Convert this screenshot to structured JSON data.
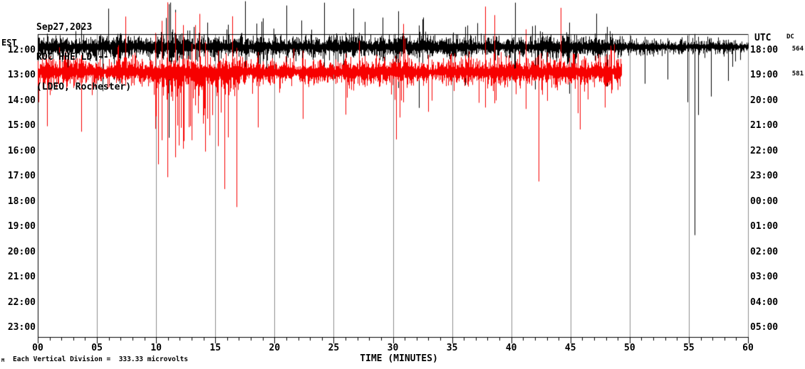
{
  "header": {
    "date": "Sep27,2023",
    "station": "ROC HHE LD --",
    "network_name": "(LDEO, Rochester)"
  },
  "left_axis": {
    "label": "EST",
    "ticks": [
      "12:00",
      "13:00",
      "14:00",
      "15:00",
      "16:00",
      "17:00",
      "18:00",
      "19:00",
      "20:00",
      "21:00",
      "22:00",
      "23:00"
    ]
  },
  "right_axis": {
    "label": "UTC",
    "ticks": [
      "18:00",
      "19:00",
      "20:00",
      "21:00",
      "22:00",
      "23:00",
      "00:00",
      "01:00",
      "02:00",
      "03:00",
      "04:00",
      "05:00"
    ]
  },
  "dc_column": {
    "label": "DC",
    "values": [
      "564",
      "581"
    ]
  },
  "x_axis": {
    "label": "TIME (MINUTES)",
    "min": 0,
    "max": 60,
    "major_step": 5,
    "minor_step": 1,
    "tick_labels": [
      "00",
      "05",
      "10",
      "15",
      "20",
      "25",
      "30",
      "35",
      "40",
      "45",
      "50",
      "55",
      "60"
    ]
  },
  "footer": {
    "scale_note": "Each Vertical Division =  333.33 microvolts",
    "mark": "M"
  },
  "colors": {
    "trace_hour1": "#000000",
    "trace_hour2": "#f70000",
    "grid": "#8c8c8c",
    "axis": "#000000",
    "background": "#ffffff"
  },
  "chart_data": {
    "type": "line",
    "subtype": "helicorder-seismogram",
    "title": "ROC HHE LD -- (LDEO, Rochester) Sep27,2023",
    "xlabel": "TIME (MINUTES)",
    "x_range": [
      0,
      60
    ],
    "grid": "vertical lines every 5 minutes",
    "vertical_division_microvolts": 333.33,
    "hours_displayed_est": [
      "12:00",
      "13:00",
      "14:00",
      "15:00",
      "16:00",
      "17:00",
      "18:00",
      "19:00",
      "20:00",
      "21:00",
      "22:00",
      "23:00"
    ],
    "rows": [
      {
        "est": "12:00",
        "utc": "18:00",
        "dc": 564,
        "color": "#000000",
        "start_min": 0,
        "end_min": 60,
        "base_amp": 11,
        "quiet_after_min": 49.5,
        "quiet_amp": 7,
        "seed": 1301,
        "spikes": [
          {
            "m": 3.2,
            "u": 22,
            "d": 38
          },
          {
            "m": 6.9,
            "u": 18,
            "d": 52
          },
          {
            "m": 11.05,
            "u": 60,
            "d": 128
          },
          {
            "m": 11.6,
            "u": 52,
            "d": 112
          },
          {
            "m": 14.3,
            "u": 34,
            "d": 62
          },
          {
            "m": 17.5,
            "u": 64,
            "d": 50
          },
          {
            "m": 19.0,
            "u": 40,
            "d": 46
          },
          {
            "m": 21.0,
            "u": 58,
            "d": 44
          },
          {
            "m": 24.2,
            "u": 62,
            "d": 38
          },
          {
            "m": 27.6,
            "u": 35,
            "d": 52
          },
          {
            "m": 30.45,
            "u": 50,
            "d": 58
          },
          {
            "m": 32.2,
            "u": 30,
            "d": 86
          },
          {
            "m": 36.1,
            "u": 28,
            "d": 54
          },
          {
            "m": 40.3,
            "u": 62,
            "d": 48
          },
          {
            "m": 42.0,
            "u": 30,
            "d": 60
          },
          {
            "m": 44.9,
            "u": 34,
            "d": 66
          },
          {
            "m": 48.1,
            "u": 28,
            "d": 56
          },
          {
            "m": 51.3,
            "u": 14,
            "d": 52
          },
          {
            "m": 53.2,
            "u": 12,
            "d": 46
          },
          {
            "m": 54.9,
            "u": 16,
            "d": 78
          },
          {
            "m": 55.5,
            "u": 18,
            "d": 265
          },
          {
            "m": 55.8,
            "u": 14,
            "d": 96
          },
          {
            "m": 56.9,
            "u": 12,
            "d": 70
          },
          {
            "m": 58.3,
            "u": 10,
            "d": 48
          }
        ]
      },
      {
        "est": "13:00",
        "utc": "19:00",
        "dc": 581,
        "color": "#f70000",
        "start_min": 0,
        "end_min": 49.3,
        "base_amp": 13,
        "burst_window": [
          9.8,
          16.8
        ],
        "seed": 7702,
        "spikes": [
          {
            "m": 3.7,
            "u": 24,
            "d": 84
          },
          {
            "m": 9.9,
            "u": 55,
            "d": 80
          },
          {
            "m": 10.5,
            "u": 72,
            "d": 96
          },
          {
            "m": 10.95,
            "u": 98,
            "d": 148
          },
          {
            "m": 11.6,
            "u": 84,
            "d": 120
          },
          {
            "m": 12.3,
            "u": 66,
            "d": 108
          },
          {
            "m": 13.0,
            "u": 40,
            "d": 96
          },
          {
            "m": 14.15,
            "u": 42,
            "d": 112
          },
          {
            "m": 15.2,
            "u": 30,
            "d": 88
          },
          {
            "m": 16.8,
            "u": 34,
            "d": 190
          },
          {
            "m": 18.6,
            "u": 28,
            "d": 78
          },
          {
            "m": 22.4,
            "u": 30,
            "d": 66
          },
          {
            "m": 26.0,
            "u": 26,
            "d": 60
          },
          {
            "m": 30.55,
            "u": 28,
            "d": 64
          },
          {
            "m": 33.0,
            "u": 24,
            "d": 56
          },
          {
            "m": 37.8,
            "u": 92,
            "d": 50
          },
          {
            "m": 38.6,
            "u": 80,
            "d": 44
          },
          {
            "m": 41.2,
            "u": 60,
            "d": 52
          },
          {
            "m": 42.3,
            "u": 24,
            "d": 154
          },
          {
            "m": 45.6,
            "u": 26,
            "d": 58
          },
          {
            "m": 47.9,
            "u": 22,
            "d": 50
          }
        ]
      }
    ]
  }
}
